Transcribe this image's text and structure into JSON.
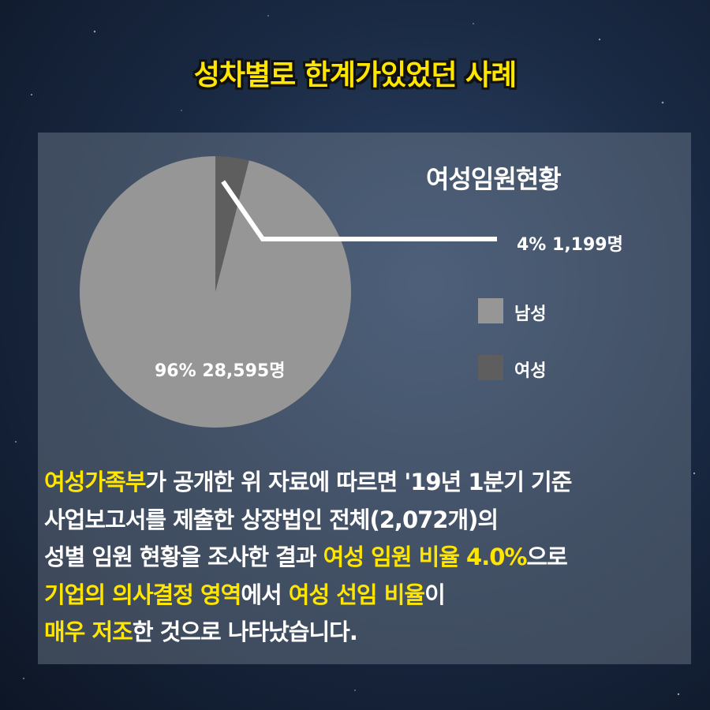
{
  "title": "성차별로 한계가있었던 사례",
  "colors": {
    "highlight": "#ffe600",
    "male_slice": "#969696",
    "female_slice": "#5e5e5e",
    "callout_line": "#ffffff"
  },
  "chart_data": {
    "type": "pie",
    "title": "여성임원현황",
    "slices": [
      {
        "name": "남성",
        "percent": 96,
        "count": 28595,
        "label": "96% 28,595명",
        "color": "#969696"
      },
      {
        "name": "여성",
        "percent": 4,
        "count": 1199,
        "label": "4% 1,199명",
        "color": "#5e5e5e"
      }
    ],
    "legend": [
      "남성",
      "여성"
    ],
    "legend_position": "right"
  },
  "body": {
    "lines": [
      [
        {
          "text": "여성가족부",
          "hl": true
        },
        {
          "text": "가 공개한 위 자료에 따르면 '19년 1분기 기준",
          "hl": false
        }
      ],
      [
        {
          "text": "사업보고서를 제출한 상장법인 전체(2,072개)의",
          "hl": false
        }
      ],
      [
        {
          "text": "성별 임원 현황을 조사한 결과 ",
          "hl": false
        },
        {
          "text": "여성 임원 비율 4.0%",
          "hl": true
        },
        {
          "text": "으로",
          "hl": false
        }
      ],
      [
        {
          "text": "기업의 의사결정 영역",
          "hl": true
        },
        {
          "text": "에서 ",
          "hl": false
        },
        {
          "text": "여성 선임 비율",
          "hl": true
        },
        {
          "text": "이",
          "hl": false
        }
      ],
      [
        {
          "text": "매우 저조",
          "hl": true
        },
        {
          "text": "한 것으로 나타났습니다.",
          "hl": false
        }
      ]
    ]
  }
}
